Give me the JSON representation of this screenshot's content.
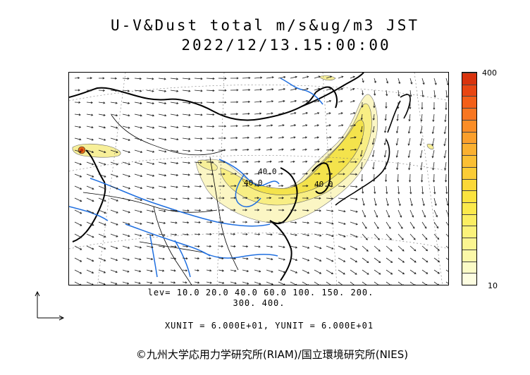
{
  "header": {
    "title": "U-V&Dust total m/s&ug/m3 JST",
    "datetime": "2022/12/13.15:00:00"
  },
  "colorbar": {
    "max_label": "400",
    "min_label": "10",
    "colors": [
      "#fdfde0",
      "#fbfbc6",
      "#fbf8a8",
      "#fbf591",
      "#fbf27a",
      "#fbee62",
      "#fbe94c",
      "#fbe33e",
      "#fbd838",
      "#fbcc36",
      "#fbbf34",
      "#fbb030",
      "#fb9f2c",
      "#fb8d26",
      "#f87620",
      "#f35f18",
      "#e84612",
      "#d8330d"
    ]
  },
  "levels": {
    "line1": "lev= 10.0 20.0 40.0 60.0 100. 150. 200.",
    "line2": "300. 400."
  },
  "units": "XUNIT = 6.000E+01, YUNIT = 6.000E+01",
  "map": {
    "contour_labels": [
      "40.0",
      "40.0",
      "40.0"
    ],
    "colors": {
      "dust_light": "#fbf6c4",
      "dust_mid": "#f8ee84",
      "dust_core": "#f4e34c",
      "river": "#1f6fe0",
      "border": "#000000",
      "vector": "#222222",
      "peak": "#e46a12"
    }
  },
  "copyright": "©九州大学応用力学研究所(RIAM)/国立環境研究所(NIES)"
}
